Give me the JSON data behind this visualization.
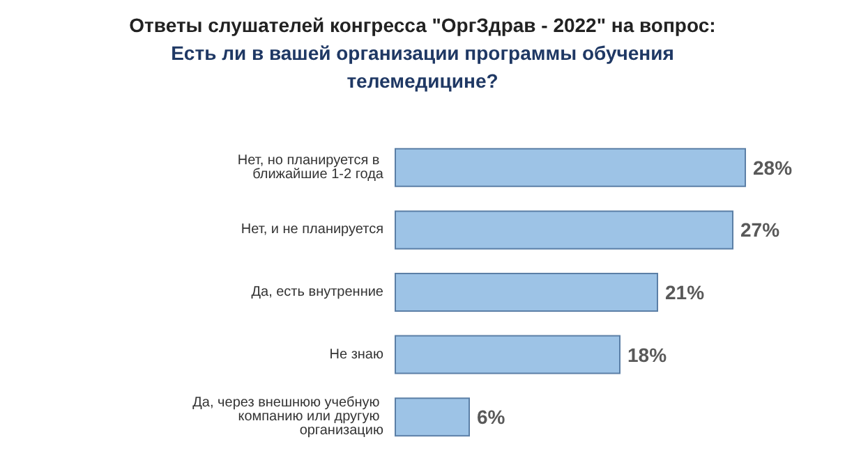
{
  "chart_data": {
    "type": "bar",
    "orientation": "horizontal",
    "title": "Ответы слушателей конгресса \"ОргЗдрав - 2022\" на вопрос:",
    "subtitle": "Есть ли в вашей организации программы обучения телемедицине?",
    "categories": [
      "Нет, но планируется в ближайшие 1-2 года",
      "Нет, и не планируется",
      "Да, есть внутренние",
      "Не знаю",
      "Да, через внешнюю учебную компанию или другую организацию"
    ],
    "values": [
      28,
      27,
      21,
      18,
      6
    ],
    "value_labels": [
      "28%",
      "27%",
      "21%",
      "18%",
      "6%"
    ],
    "color": "#9dc3e6"
  }
}
